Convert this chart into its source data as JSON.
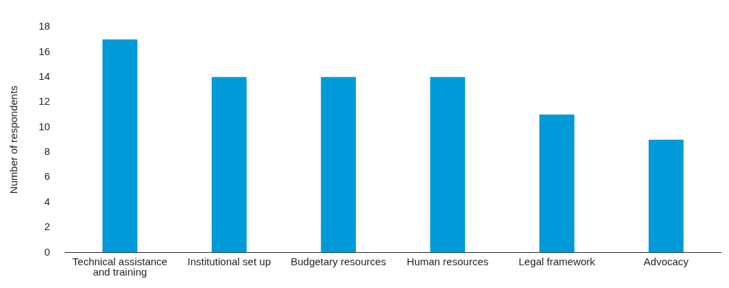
{
  "chart_data": {
    "type": "bar",
    "ylabel": "Number of respondents",
    "categories": [
      "Technical assistance and training",
      "Institutional set up",
      "Budgetary resources",
      "Human resources",
      "Legal framework",
      "Advocacy"
    ],
    "values": [
      17,
      14,
      14,
      14,
      11,
      9
    ],
    "color": "#009ad9",
    "ylim": [
      0,
      18
    ],
    "yticks": [
      0,
      2,
      4,
      6,
      8,
      10,
      12,
      14,
      16,
      18
    ],
    "grid": false,
    "legend": false
  }
}
